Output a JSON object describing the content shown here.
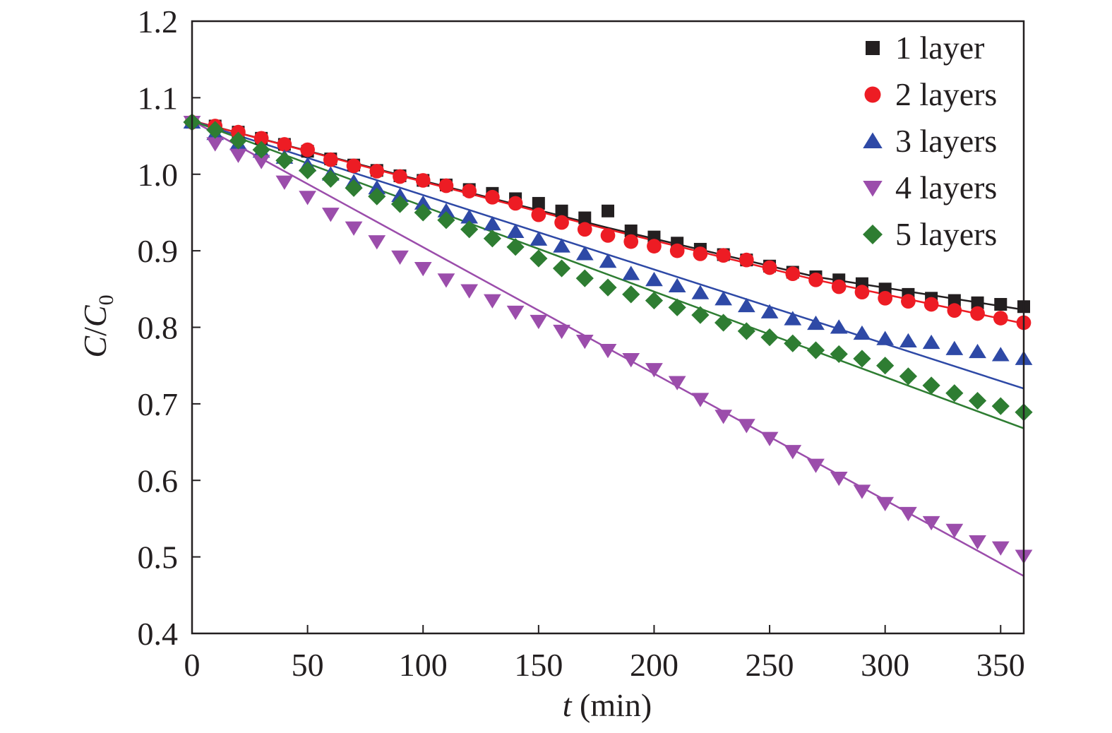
{
  "chart_data": {
    "type": "scatter",
    "title": "",
    "xlabel": {
      "var": "t",
      "unit": " (min)"
    },
    "ylabel": {
      "num": "C",
      "slash": "/",
      "den": "C",
      "sub": "0"
    },
    "xlim": [
      0,
      360
    ],
    "ylim": [
      0.4,
      1.2
    ],
    "xticks": [
      0,
      50,
      100,
      150,
      200,
      250,
      300,
      350
    ],
    "xtick_labels": [
      "0",
      "50",
      "100",
      "150",
      "200",
      "250",
      "300",
      "350"
    ],
    "yticks": [
      0.4,
      0.5,
      0.6,
      0.7,
      0.8,
      0.9,
      1.0,
      1.1,
      1.2
    ],
    "ytick_labels": [
      "0.4",
      "0.5",
      "0.6",
      "0.7",
      "0.8",
      "0.9",
      "1.0",
      "1.1",
      "1.2"
    ],
    "grid": false,
    "legend_position": "top-right",
    "x": [
      0,
      10,
      20,
      30,
      40,
      50,
      60,
      70,
      80,
      90,
      100,
      110,
      120,
      130,
      140,
      150,
      160,
      170,
      180,
      190,
      200,
      210,
      220,
      230,
      240,
      250,
      260,
      270,
      280,
      290,
      300,
      310,
      320,
      330,
      340,
      350,
      360
    ],
    "series": [
      {
        "name": "1 layer",
        "marker": "square",
        "color": "#231f20",
        "values": [
          1.068,
          1.063,
          1.055,
          1.047,
          1.039,
          1.03,
          1.02,
          1.012,
          1.005,
          0.998,
          0.992,
          0.986,
          0.98,
          0.975,
          0.968,
          0.962,
          0.952,
          0.943,
          0.952,
          0.926,
          0.918,
          0.91,
          0.902,
          0.895,
          0.888,
          0.88,
          0.872,
          0.866,
          0.862,
          0.857,
          0.85,
          0.843,
          0.838,
          0.835,
          0.832,
          0.83,
          0.827
        ],
        "fit": [
          [
            0,
            1.07
          ],
          [
            90,
            0.999
          ],
          [
            180,
            0.93
          ],
          [
            270,
            0.866
          ],
          [
            360,
            0.823
          ]
        ]
      },
      {
        "name": "2 layers",
        "marker": "circle",
        "color": "#ed1c24",
        "values": [
          1.068,
          1.063,
          1.055,
          1.047,
          1.039,
          1.032,
          1.019,
          1.011,
          1.004,
          0.997,
          0.992,
          0.985,
          0.978,
          0.97,
          0.962,
          0.947,
          0.937,
          0.928,
          0.92,
          0.912,
          0.906,
          0.9,
          0.896,
          0.894,
          0.888,
          0.878,
          0.87,
          0.862,
          0.853,
          0.846,
          0.838,
          0.834,
          0.83,
          0.822,
          0.818,
          0.812,
          0.806
        ],
        "fit": [
          [
            0,
            1.07
          ],
          [
            90,
            0.998
          ],
          [
            180,
            0.928
          ],
          [
            270,
            0.862
          ],
          [
            360,
            0.805
          ]
        ]
      },
      {
        "name": "3 layers",
        "marker": "triangle-up",
        "color": "#2e49a6",
        "values": [
          1.068,
          1.053,
          1.04,
          1.03,
          1.022,
          1.012,
          1.0,
          0.99,
          0.982,
          0.972,
          0.962,
          0.952,
          0.944,
          0.935,
          0.925,
          0.915,
          0.906,
          0.896,
          0.886,
          0.87,
          0.862,
          0.854,
          0.845,
          0.837,
          0.828,
          0.82,
          0.811,
          0.805,
          0.8,
          0.792,
          0.785,
          0.782,
          0.78,
          0.772,
          0.768,
          0.764,
          0.759
        ],
        "fit": [
          [
            0,
            1.07
          ],
          [
            360,
            0.72
          ]
        ]
      },
      {
        "name": "4 layers",
        "marker": "triangle-down",
        "color": "#9b4dab",
        "values": [
          1.068,
          1.04,
          1.025,
          1.017,
          0.99,
          0.97,
          0.948,
          0.93,
          0.912,
          0.892,
          0.877,
          0.862,
          0.848,
          0.835,
          0.82,
          0.808,
          0.795,
          0.782,
          0.77,
          0.758,
          0.745,
          0.728,
          0.706,
          0.684,
          0.672,
          0.655,
          0.638,
          0.62,
          0.603,
          0.586,
          0.57,
          0.557,
          0.545,
          0.535,
          0.52,
          0.512,
          0.501
        ],
        "fit": [
          [
            0,
            1.07
          ],
          [
            360,
            0.475
          ]
        ]
      },
      {
        "name": "5 layers",
        "marker": "diamond",
        "color": "#2e7d32",
        "values": [
          1.068,
          1.058,
          1.044,
          1.032,
          1.018,
          1.005,
          0.994,
          0.982,
          0.971,
          0.961,
          0.95,
          0.94,
          0.928,
          0.916,
          0.905,
          0.89,
          0.877,
          0.864,
          0.852,
          0.843,
          0.835,
          0.826,
          0.816,
          0.806,
          0.795,
          0.787,
          0.779,
          0.77,
          0.765,
          0.759,
          0.75,
          0.736,
          0.724,
          0.714,
          0.704,
          0.697,
          0.689
        ],
        "fit": [
          [
            0,
            1.07
          ],
          [
            360,
            0.668
          ]
        ]
      }
    ]
  }
}
